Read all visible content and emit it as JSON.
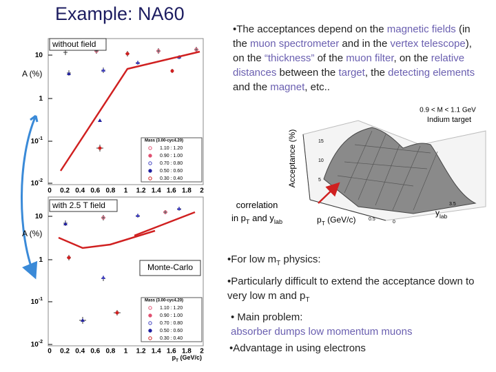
{
  "title": "Example: NA60",
  "intro": [
    {
      "t": "•The acceptances depend on the "
    },
    {
      "t": "magnetic fields",
      "color": "#6a5fb0"
    },
    {
      "t": " (in the "
    },
    {
      "t": "muon spectrometer",
      "color": "#6a5fb0"
    },
    {
      "t": " and in the "
    },
    {
      "t": "vertex telescope",
      "color": "#6a5fb0"
    },
    {
      "t": "), on the "
    },
    {
      "t": "“thickness”",
      "color": "#6a5fb0"
    },
    {
      "t": " of the "
    },
    {
      "t": "muon filter",
      "color": "#6a5fb0"
    },
    {
      "t": ", on the "
    },
    {
      "t": "relative distances",
      "color": "#6a5fb0"
    },
    {
      "t": " between the "
    },
    {
      "t": "target",
      "color": "#6a5fb0"
    },
    {
      "t": ", the "
    },
    {
      "t": "detecting elements",
      "color": "#6a5fb0"
    },
    {
      "t": " and the "
    },
    {
      "t": "magnet",
      "color": "#6a5fb0"
    },
    {
      "t": ", etc.."
    }
  ],
  "plots": [
    {
      "label": "without field",
      "y_label": "A (%)",
      "yticks": [
        [
          {
            "t": "10"
          }
        ],
        [
          {
            "t": "1"
          }
        ],
        [
          {
            "t": "10"
          },
          {
            "t": "-1",
            "sup": true
          }
        ],
        [
          {
            "t": "10"
          },
          {
            "t": "-2",
            "sup": true
          }
        ]
      ],
      "xticks": [
        "0",
        "0.2",
        "0.4",
        "0.6",
        "0.8",
        "1",
        "1.2",
        "1.4",
        "1.6",
        "1.8",
        "2"
      ],
      "legend_title": "Mass (3.00-cyc4.20)",
      "legend": [
        "1.10 : 1.20",
        "0.90 : 1.00",
        "0.70 : 0.80",
        "0.50 : 0.60",
        "0.30 : 0.40"
      ]
    },
    {
      "label": "with 2.5 T field",
      "y_label": "A (%)",
      "yticks": [
        [
          {
            "t": "10"
          }
        ],
        [
          {
            "t": "1"
          }
        ],
        [
          {
            "t": "10"
          },
          {
            "t": "-1",
            "sup": true
          }
        ],
        [
          {
            "t": "10"
          },
          {
            "t": "-2",
            "sup": true
          }
        ]
      ],
      "xticks": [
        "0",
        "0.2",
        "0.4",
        "0.6",
        "0.8",
        "1",
        "1.2",
        "1.4",
        "1.6",
        "1.8",
        "2"
      ],
      "x_label": [
        {
          "t": "p"
        },
        {
          "t": "T",
          "sub": true
        },
        {
          "t": " (GeV/c)"
        }
      ],
      "legend_title": "Mass (3.00-cyc4.20)",
      "legend": [
        "1.10 : 1.20",
        "0.90 : 1.00",
        "0.70 : 0.80",
        "0.50 : 0.60",
        "0.30 : 0.40"
      ],
      "note": "Monte-Carlo"
    }
  ],
  "marker_colors": [
    "#e05070",
    "#e05070",
    "#4040c0",
    "#2020a0",
    "#d02020"
  ],
  "surface": {
    "cut": "0.9 < M < 1.1 GeV",
    "target": "Indium target",
    "z_label": "Acceptance (%)",
    "zticks": [
      "15",
      "10",
      "5"
    ],
    "caption": [
      {
        "t": "correlation"
      },
      {
        "t": "in p"
      },
      {
        "t": "T",
        "sub": true
      },
      {
        "t": " and y"
      },
      {
        "t": "lab",
        "sub": true
      }
    ],
    "x_label": [
      {
        "t": "p"
      },
      {
        "t": "T",
        "sub": true
      },
      {
        "t": " (GeV/c)"
      }
    ],
    "y_label": [
      {
        "t": "y"
      },
      {
        "t": "lab",
        "sub": true
      }
    ],
    "xticks": [
      "0.5",
      "0"
    ],
    "yticks": [
      "3.5"
    ]
  },
  "bullets": [
    [
      {
        "t": "•For low m"
      },
      {
        "t": "T",
        "sub": true
      },
      {
        "t": " physics:"
      }
    ],
    [
      {
        "t": "•Particularly difficult to extend the acceptance down to very low m and p"
      },
      {
        "t": "T",
        "sub": true
      }
    ],
    [
      {
        "t": "• Main problem:"
      },
      {
        "t": "absorber dumps low momentum muons",
        "color": "#6a5fb0",
        "block": true
      }
    ],
    [
      {
        "t": "•Advantage in using electrons"
      }
    ]
  ]
}
